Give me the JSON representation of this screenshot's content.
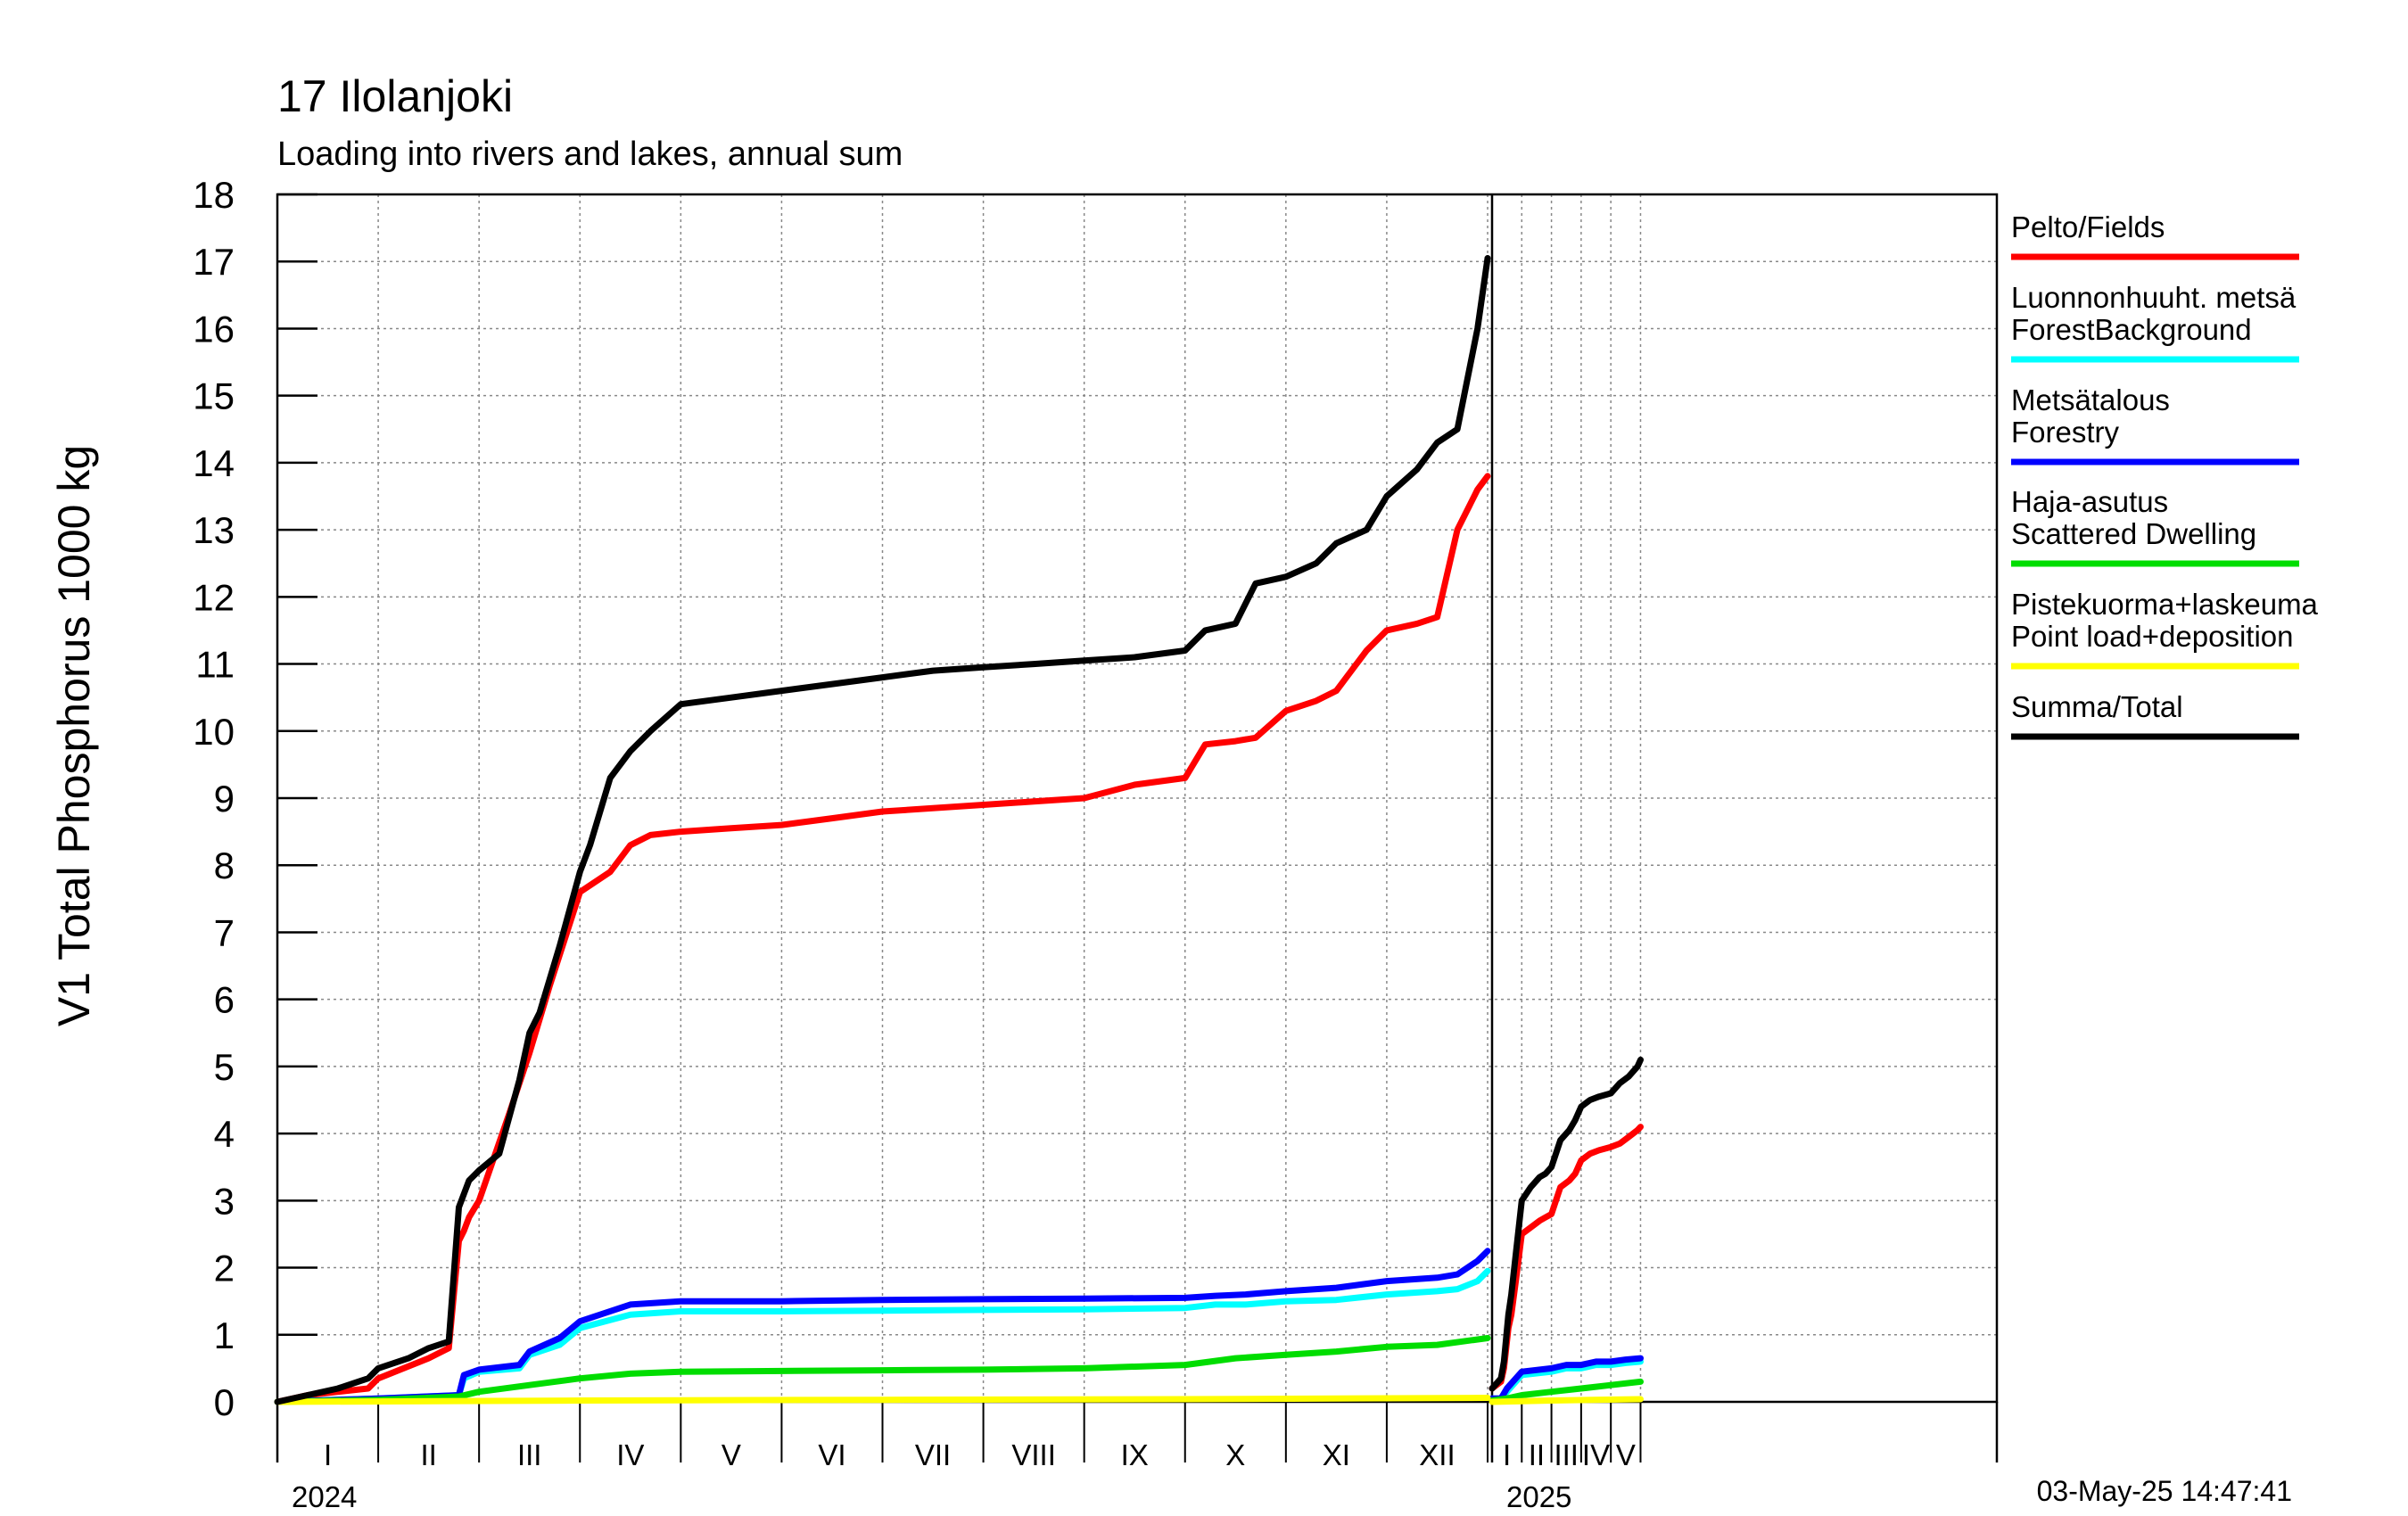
{
  "chart_data": {
    "type": "line",
    "title": "17 Ilolanjoki",
    "subtitle": "Loading into rivers and lakes, annual sum",
    "ylabel": "V1 Total Phosphorus 1000 kg",
    "ylim": [
      0,
      18
    ],
    "yticks": [
      "0",
      "1",
      "2",
      "3",
      "4",
      "5",
      "6",
      "7",
      "8",
      "9",
      "10",
      "11",
      "12",
      "13",
      "14",
      "15",
      "16",
      "17",
      "18"
    ],
    "grid": true,
    "legend_position": "right",
    "timestamp": "03-May-25 14:47:41",
    "years": [
      {
        "label": "2024",
        "months": [
          "I",
          "II",
          "III",
          "IV",
          "V",
          "VI",
          "VII",
          "VIII",
          "IX",
          "X",
          "XI",
          "XII"
        ]
      },
      {
        "label": "2025",
        "months": [
          "I",
          "II",
          "III",
          "IV",
          "V"
        ]
      }
    ],
    "series": [
      {
        "name": "Pelto/Fields",
        "color": "#ff0000",
        "segments": [
          {
            "year": 0,
            "x": [
              0,
              0.3,
              0.6,
              0.9,
              1,
              1.5,
              1.7,
              1.8,
              1.85,
              1.9,
              2,
              2.3,
              2.5,
              2.7,
              3,
              3.3,
              3.5,
              3.7,
              4,
              4.5,
              5,
              5.5,
              6,
              6.5,
              7,
              7.5,
              8,
              8.5,
              9,
              9.2,
              9.5,
              9.7,
              10,
              10.3,
              10.5,
              10.8,
              11,
              11.3,
              11.5,
              11.7,
              11.9,
              12
            ],
            "y": [
              0,
              0.1,
              0.15,
              0.2,
              0.35,
              0.65,
              0.8,
              2.4,
              2.55,
              2.75,
              3,
              4.3,
              5.2,
              6.2,
              7.6,
              7.9,
              8.3,
              8.45,
              8.5,
              8.55,
              8.6,
              8.7,
              8.8,
              8.85,
              8.9,
              8.95,
              9,
              9.2,
              9.3,
              9.8,
              9.85,
              9.9,
              10.3,
              10.45,
              10.6,
              11.2,
              11.5,
              11.6,
              11.7,
              13.0,
              13.6,
              13.8
            ]
          },
          {
            "year": 1,
            "x": [
              0,
              0.3,
              0.4,
              0.55,
              0.65,
              0.8,
              1,
              1.3,
              1.6,
              1.8,
              2,
              2.3,
              2.6,
              2.8,
              3,
              3.3,
              3.6,
              4,
              4.3,
              4.6,
              4.9,
              5
            ],
            "y": [
              0.2,
              0.3,
              0.5,
              1.1,
              1.3,
              1.8,
              2.5,
              2.6,
              2.7,
              2.75,
              2.8,
              3.2,
              3.3,
              3.4,
              3.6,
              3.7,
              3.75,
              3.8,
              3.85,
              3.95,
              4.05,
              4.1
            ]
          }
        ]
      },
      {
        "name": "Luonnonhuuht. metsä\nForestBackground",
        "color": "#00ffff",
        "segments": [
          {
            "year": 0,
            "x": [
              0,
              1,
              1.8,
              1.85,
              2,
              2.4,
              2.5,
              2.8,
              3,
              3.5,
              4,
              5,
              6,
              7,
              8,
              9,
              9.3,
              9.6,
              10,
              10.5,
              11,
              11.5,
              11.7,
              11.9,
              12
            ],
            "y": [
              0,
              0.05,
              0.1,
              0.35,
              0.45,
              0.5,
              0.7,
              0.85,
              1.1,
              1.3,
              1.35,
              1.35,
              1.36,
              1.37,
              1.38,
              1.4,
              1.45,
              1.45,
              1.5,
              1.52,
              1.6,
              1.65,
              1.68,
              1.8,
              1.95
            ]
          },
          {
            "year": 1,
            "x": [
              0,
              0.3,
              0.5,
              0.7,
              1,
              2,
              2.5,
              3,
              3.5,
              4,
              4.5,
              5
            ],
            "y": [
              0.05,
              0.05,
              0.15,
              0.25,
              0.4,
              0.45,
              0.5,
              0.5,
              0.55,
              0.55,
              0.58,
              0.6
            ]
          }
        ]
      },
      {
        "name": "Metsätalous\nForestry",
        "color": "#0000ff",
        "segments": [
          {
            "year": 0,
            "x": [
              0,
              1,
              1.8,
              1.85,
              2,
              2.4,
              2.5,
              2.8,
              3,
              3.5,
              4,
              5,
              6,
              7,
              8,
              9,
              9.3,
              9.6,
              10,
              10.5,
              11,
              11.5,
              11.7,
              11.9,
              12
            ],
            "y": [
              0,
              0.05,
              0.1,
              0.4,
              0.48,
              0.55,
              0.75,
              0.95,
              1.2,
              1.45,
              1.5,
              1.5,
              1.52,
              1.53,
              1.54,
              1.55,
              1.58,
              1.6,
              1.65,
              1.7,
              1.8,
              1.85,
              1.9,
              2.1,
              2.25
            ]
          },
          {
            "year": 1,
            "x": [
              0,
              0.3,
              0.5,
              0.7,
              1,
              2,
              2.5,
              3,
              3.5,
              4,
              4.5,
              5
            ],
            "y": [
              0.05,
              0.05,
              0.2,
              0.3,
              0.45,
              0.5,
              0.55,
              0.55,
              0.6,
              0.6,
              0.63,
              0.65
            ]
          }
        ]
      },
      {
        "name": "Haja-asutus\nScattered Dwelling",
        "color": "#00dd00",
        "segments": [
          {
            "year": 0,
            "x": [
              0,
              1,
              1.8,
              2,
              2.5,
              3,
              3.5,
              4,
              5,
              6,
              7,
              8,
              9,
              9.5,
              10,
              10.5,
              11,
              11.5,
              12
            ],
            "y": [
              0,
              0.03,
              0.08,
              0.15,
              0.25,
              0.35,
              0.42,
              0.45,
              0.46,
              0.47,
              0.48,
              0.5,
              0.55,
              0.65,
              0.7,
              0.75,
              0.82,
              0.85,
              0.95
            ]
          },
          {
            "year": 1,
            "x": [
              0,
              0.5,
              1,
              2,
              3,
              4,
              5
            ],
            "y": [
              0.02,
              0.05,
              0.1,
              0.15,
              0.2,
              0.25,
              0.3
            ]
          }
        ]
      },
      {
        "name": "Pistekuorma+laskeuma\nPoint load+deposition",
        "color": "#ffff00",
        "segments": [
          {
            "year": 0,
            "x": [
              0,
              3,
              6,
              9,
              12
            ],
            "y": [
              0,
              0.02,
              0.03,
              0.04,
              0.06
            ]
          },
          {
            "year": 1,
            "x": [
              0,
              2,
              5
            ],
            "y": [
              0,
              0.02,
              0.04
            ]
          }
        ]
      },
      {
        "name": "Summa/Total",
        "color": "#000000",
        "segments": [
          {
            "year": 0,
            "x": [
              0,
              0.3,
              0.6,
              0.8,
              0.9,
              1,
              1.3,
              1.5,
              1.7,
              1.8,
              1.85,
              1.9,
              2,
              2.2,
              2.4,
              2.5,
              2.6,
              2.8,
              3,
              3.1,
              3.3,
              3.5,
              3.7,
              4,
              4.5,
              5,
              5.5,
              6,
              6.5,
              7,
              7.5,
              8,
              8.5,
              9,
              9.2,
              9.5,
              9.7,
              10,
              10.3,
              10.5,
              10.8,
              11,
              11.3,
              11.5,
              11.7,
              11.9,
              12
            ],
            "y": [
              0,
              0.1,
              0.2,
              0.3,
              0.35,
              0.5,
              0.65,
              0.8,
              0.9,
              2.9,
              3.1,
              3.3,
              3.45,
              3.7,
              4.8,
              5.5,
              5.8,
              6.8,
              7.9,
              8.3,
              9.3,
              9.7,
              10.0,
              10.4,
              10.5,
              10.6,
              10.7,
              10.8,
              10.9,
              10.95,
              11.0,
              11.05,
              11.1,
              11.2,
              11.5,
              11.6,
              12.2,
              12.3,
              12.5,
              12.8,
              13.0,
              13.5,
              13.9,
              14.3,
              14.5,
              16.0,
              17.05
            ]
          },
          {
            "year": 1,
            "x": [
              0,
              0.3,
              0.4,
              0.55,
              0.65,
              0.8,
              1,
              1.3,
              1.6,
              1.8,
              2,
              2.3,
              2.6,
              2.8,
              3,
              3.3,
              3.6,
              4,
              4.3,
              4.6,
              4.9,
              5
            ],
            "y": [
              0.2,
              0.35,
              0.6,
              1.3,
              1.6,
              2.2,
              3.0,
              3.2,
              3.35,
              3.4,
              3.5,
              3.9,
              4.05,
              4.2,
              4.4,
              4.5,
              4.55,
              4.6,
              4.75,
              4.85,
              5.0,
              5.1
            ]
          }
        ]
      }
    ]
  }
}
